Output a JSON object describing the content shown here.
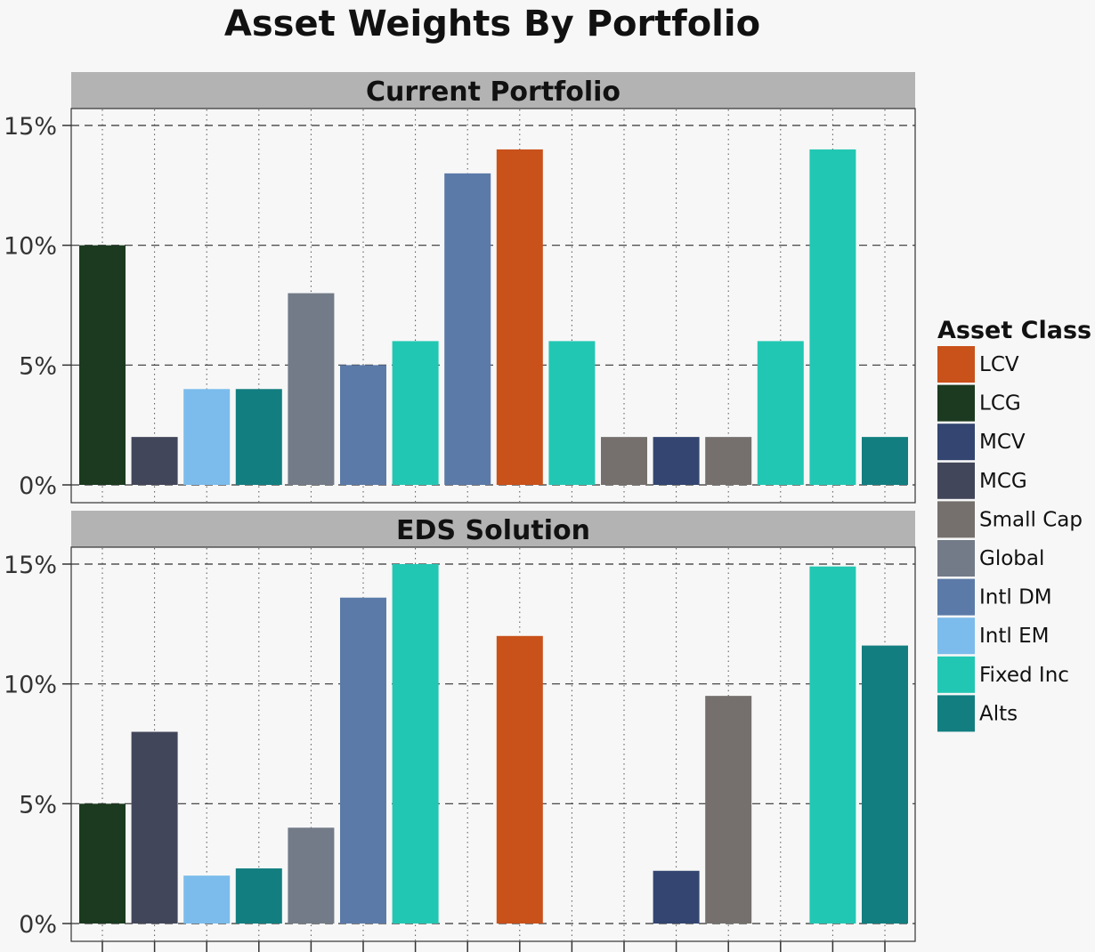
{
  "chart_data": {
    "type": "bar",
    "title": "Asset Weights By Portfolio",
    "xlabel": "",
    "ylabel": "",
    "ylim": [
      0,
      15.5
    ],
    "yticks": [
      0,
      5,
      10,
      15
    ],
    "ytick_labels": [
      "0%",
      "5%",
      "10%",
      "15%"
    ],
    "legend": {
      "title": "Asset Class",
      "position": "right",
      "entries": [
        {
          "name": "LCV",
          "color": "#c9511a"
        },
        {
          "name": "LCG",
          "color": "#1b3a1f"
        },
        {
          "name": "MCV",
          "color": "#334570"
        },
        {
          "name": "MCG",
          "color": "#42465a"
        },
        {
          "name": "Small Cap",
          "color": "#75706d"
        },
        {
          "name": "Global",
          "color": "#737b88"
        },
        {
          "name": "Intl DM",
          "color": "#5b7aa8"
        },
        {
          "name": "Intl EM",
          "color": "#7bbcec"
        },
        {
          "name": "Fixed Inc",
          "color": "#22c7b3"
        },
        {
          "name": "Alts",
          "color": "#127e80"
        }
      ]
    },
    "bar_classes": [
      "LCG",
      "MCG",
      "Intl EM",
      "Alts",
      "Global",
      "Intl DM",
      "Fixed Inc",
      "Intl DM",
      "LCV",
      "Fixed Inc",
      "Small Cap",
      "MCV",
      "Small Cap",
      "Fixed Inc",
      "Fixed Inc",
      "Alts"
    ],
    "panels": [
      {
        "name": "Current Portfolio",
        "values": [
          10,
          2,
          4,
          4,
          8,
          5,
          6,
          13,
          14,
          6,
          2,
          2,
          2,
          6,
          14,
          2
        ]
      },
      {
        "name": "EDS Solution",
        "values": [
          5,
          8,
          2,
          2.3,
          4,
          13.6,
          15,
          0,
          12,
          0,
          0,
          2.2,
          9.5,
          0,
          14.9,
          11.6
        ]
      }
    ]
  }
}
